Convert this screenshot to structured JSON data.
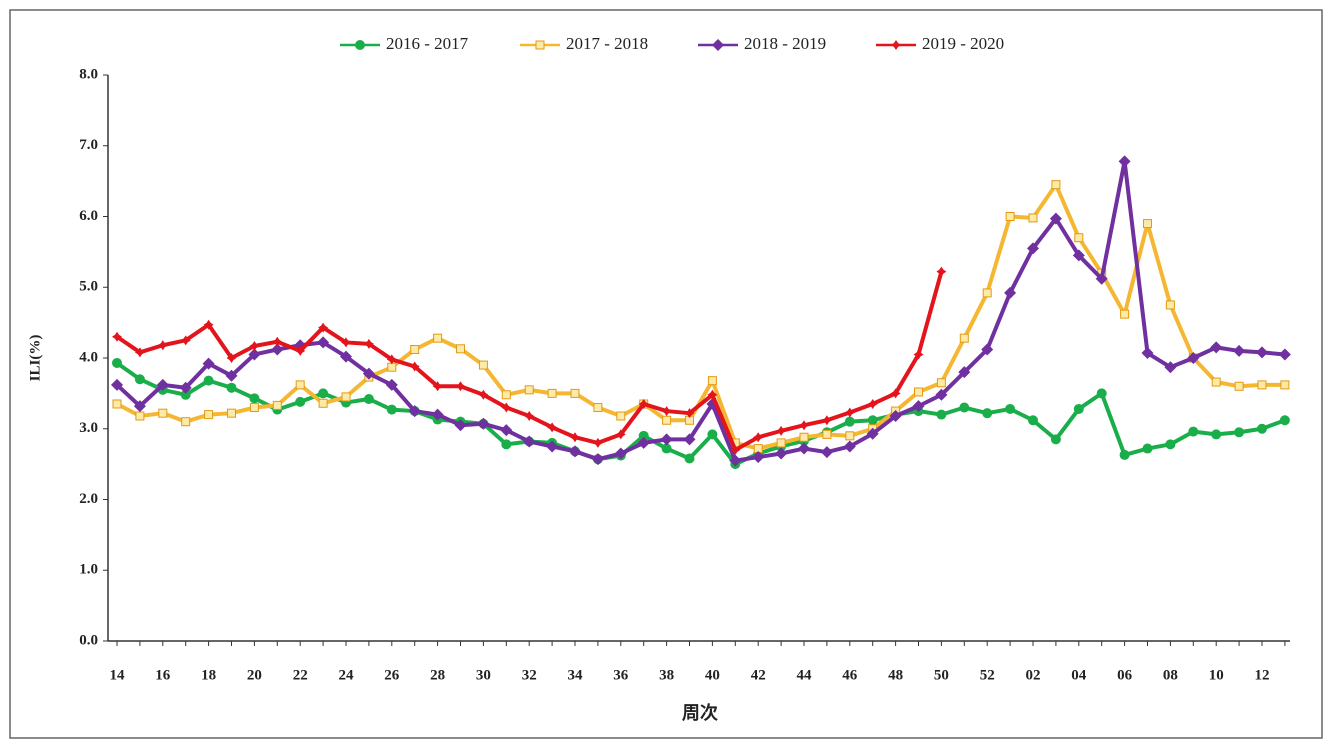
{
  "chart_data": {
    "type": "line",
    "y_label": "ILI(%)",
    "x_label": "周次",
    "categories": [
      "14",
      null,
      "16",
      null,
      "18",
      null,
      "20",
      null,
      "22",
      null,
      "24",
      null,
      "26",
      null,
      "28",
      null,
      "30",
      null,
      "32",
      null,
      "34",
      null,
      "36",
      null,
      "38",
      null,
      "40",
      null,
      "42",
      null,
      "44",
      null,
      "46",
      null,
      "48",
      null,
      "50",
      null,
      "52",
      null,
      "02",
      null,
      "04",
      null,
      "06",
      null,
      "08",
      null,
      "10",
      null,
      "12",
      null
    ],
    "ylim": [
      0,
      8
    ],
    "yticks": [
      {
        "value": 0,
        "label": "0.0"
      },
      {
        "value": 1,
        "label": "1.0"
      },
      {
        "value": 2,
        "label": "2.0"
      },
      {
        "value": 3,
        "label": "3.0"
      },
      {
        "value": 4,
        "label": "4.0"
      },
      {
        "value": 5,
        "label": "5.0"
      },
      {
        "value": 6,
        "label": "6.0"
      },
      {
        "value": 7,
        "label": "7.0"
      },
      {
        "value": 8,
        "label": "8.0"
      }
    ],
    "legend": "top",
    "series": [
      {
        "name": "2016 - 2017",
        "color": "#1aae4a",
        "marker": "circle",
        "values": [
          3.93,
          3.7,
          3.55,
          3.48,
          3.68,
          3.58,
          3.43,
          3.27,
          3.38,
          3.5,
          3.37,
          3.42,
          3.27,
          3.25,
          3.13,
          3.1,
          3.07,
          2.78,
          2.82,
          2.8,
          2.68,
          2.57,
          2.62,
          2.9,
          2.72,
          2.58,
          2.92,
          2.5,
          2.65,
          2.75,
          2.83,
          2.95,
          3.1,
          3.12,
          3.2,
          3.25,
          3.2,
          3.3,
          3.22,
          3.28,
          3.12,
          2.85,
          3.28,
          3.5,
          2.63,
          2.72,
          2.78,
          2.96,
          2.92,
          2.95,
          3.0,
          3.12
        ]
      },
      {
        "name": "2017 - 2018",
        "color": "#f5b731",
        "marker": "square",
        "values": [
          3.35,
          3.18,
          3.22,
          3.1,
          3.2,
          3.22,
          3.3,
          3.33,
          3.62,
          3.36,
          3.45,
          3.73,
          3.87,
          4.12,
          4.28,
          4.13,
          3.9,
          3.48,
          3.55,
          3.5,
          3.5,
          3.3,
          3.18,
          3.35,
          3.12,
          3.12,
          3.68,
          2.8,
          2.72,
          2.8,
          2.88,
          2.92,
          2.9,
          3.0,
          3.25,
          3.52,
          3.65,
          4.28,
          4.92,
          6.0,
          5.98,
          6.45,
          5.7,
          5.2,
          4.62,
          5.9,
          4.75,
          4.0,
          3.66,
          3.6,
          3.62,
          3.62
        ]
      },
      {
        "name": "2018 - 2019",
        "color": "#7030a0",
        "marker": "diamond",
        "values": [
          3.62,
          3.32,
          3.62,
          3.58,
          3.92,
          3.75,
          4.05,
          4.12,
          4.18,
          4.22,
          4.02,
          3.78,
          3.62,
          3.25,
          3.2,
          3.05,
          3.07,
          2.98,
          2.82,
          2.75,
          2.68,
          2.57,
          2.65,
          2.8,
          2.85,
          2.85,
          3.35,
          2.55,
          2.6,
          2.65,
          2.72,
          2.67,
          2.75,
          2.93,
          3.18,
          3.32,
          3.48,
          3.8,
          4.12,
          4.92,
          5.55,
          5.97,
          5.45,
          5.12,
          6.78,
          4.07,
          3.87,
          4.0,
          4.15,
          4.1,
          4.08,
          4.05
        ]
      },
      {
        "name": "2019 - 2020",
        "color": "#e3141b",
        "marker": "star",
        "values": [
          4.3,
          4.08,
          4.18,
          4.25,
          4.47,
          4.0,
          4.17,
          4.23,
          4.1,
          4.43,
          4.22,
          4.2,
          3.98,
          3.88,
          3.6,
          3.6,
          3.48,
          3.3,
          3.18,
          3.02,
          2.88,
          2.8,
          2.92,
          3.35,
          3.25,
          3.22,
          3.48,
          2.7,
          2.88,
          2.97,
          3.05,
          3.12,
          3.23,
          3.35,
          3.5,
          4.05,
          5.22,
          null,
          null,
          null,
          null,
          null,
          null,
          null,
          null,
          null,
          null,
          null,
          null,
          null,
          null,
          null
        ]
      }
    ]
  }
}
